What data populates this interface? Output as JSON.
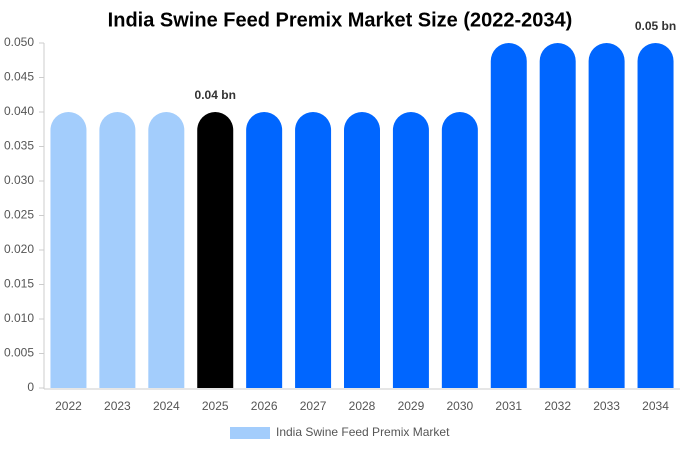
{
  "chart_data": {
    "type": "bar",
    "title": "India Swine Feed Premix Market Size (2022-2034)",
    "categories": [
      "2022",
      "2023",
      "2024",
      "2025",
      "2026",
      "2027",
      "2028",
      "2029",
      "2030",
      "2031",
      "2032",
      "2033",
      "2034"
    ],
    "series": [
      {
        "name": "India Swine Feed Premix Market",
        "color": "#a3cdfc",
        "bar_colors": [
          "#a3cdfc",
          "#a3cdfc",
          "#a3cdfc",
          "#000000",
          "#0066ff",
          "#0066ff",
          "#0066ff",
          "#0066ff",
          "#0066ff",
          "#0066ff",
          "#0066ff",
          "#0066ff",
          "#0066ff"
        ],
        "values": [
          0.04,
          0.04,
          0.04,
          0.04,
          0.04,
          0.04,
          0.04,
          0.04,
          0.04,
          0.05,
          0.05,
          0.05,
          0.05
        ],
        "value_labels": [
          null,
          null,
          null,
          "0.04 bn",
          null,
          null,
          null,
          null,
          null,
          null,
          null,
          null,
          "0.05 bn"
        ]
      }
    ],
    "ylim": [
      0,
      0.05
    ],
    "yticks": [
      0,
      {
        "value": 0.005,
        "label": "0.005"
      },
      {
        "value": 0.01,
        "label": "0.010"
      },
      {
        "value": 0.015,
        "label": "0.015"
      },
      {
        "value": 0.02,
        "label": "0.020"
      },
      {
        "value": 0.025,
        "label": "0.025"
      },
      {
        "value": 0.03,
        "label": "0.030"
      },
      {
        "value": 0.035,
        "label": "0.035"
      },
      {
        "value": 0.04,
        "label": "0.040"
      },
      {
        "value": 0.045,
        "label": "0.045"
      },
      {
        "value": 0.05,
        "label": "0.050"
      }
    ],
    "grid": false,
    "legend": "bottom"
  }
}
